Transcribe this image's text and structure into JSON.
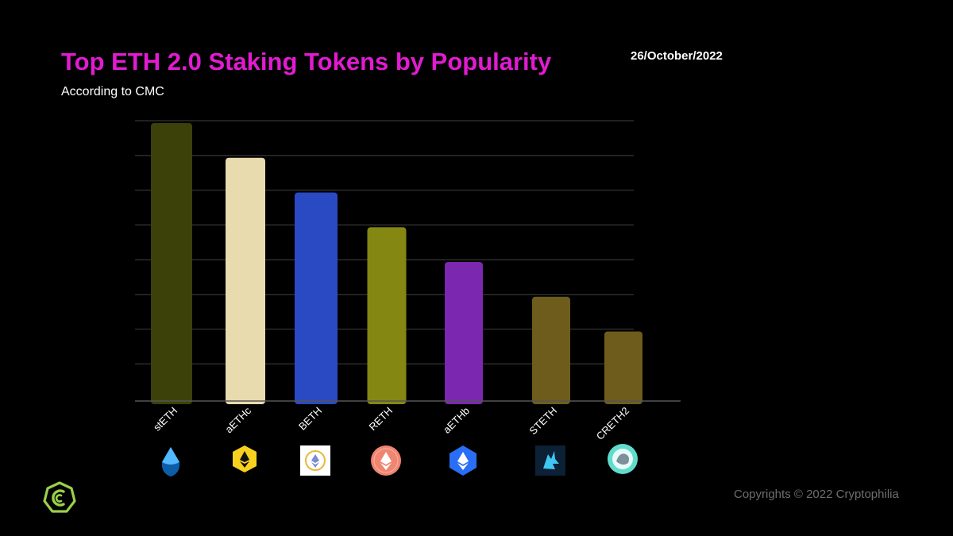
{
  "header": {
    "title": "Top ETH 2.0 Staking Tokens by Popularity",
    "subtitle": "According to CMC",
    "date": "26/October/2022"
  },
  "footer": {
    "copyright": "Copyrights © 2022 Cryptophilia"
  },
  "chart_data": {
    "type": "bar",
    "title": "Top ETH 2.0 Staking Tokens by Popularity",
    "subtitle": "According to CMC",
    "categories": [
      "stETH",
      "aETHc",
      "BETH",
      "RETH",
      "aETHb",
      "STETH",
      "CRETH2"
    ],
    "values": [
      8,
      7,
      6,
      5,
      4,
      3,
      2
    ],
    "ylim": [
      0,
      8
    ],
    "grid": true,
    "axis_tick_labels_shown": false,
    "bar_colors": [
      "#3c4109",
      "#e8dbad",
      "#2a4ac4",
      "#848712",
      "#7b27b0",
      "#6e5c1c",
      "#6e5c1c"
    ],
    "icons": [
      "lido-steth-icon",
      "ankr-aethc-icon",
      "binance-beth-icon",
      "rocketpool-reth-icon",
      "ankr-aethb-icon",
      "steth-wolf-icon",
      "creth2-icon"
    ]
  }
}
